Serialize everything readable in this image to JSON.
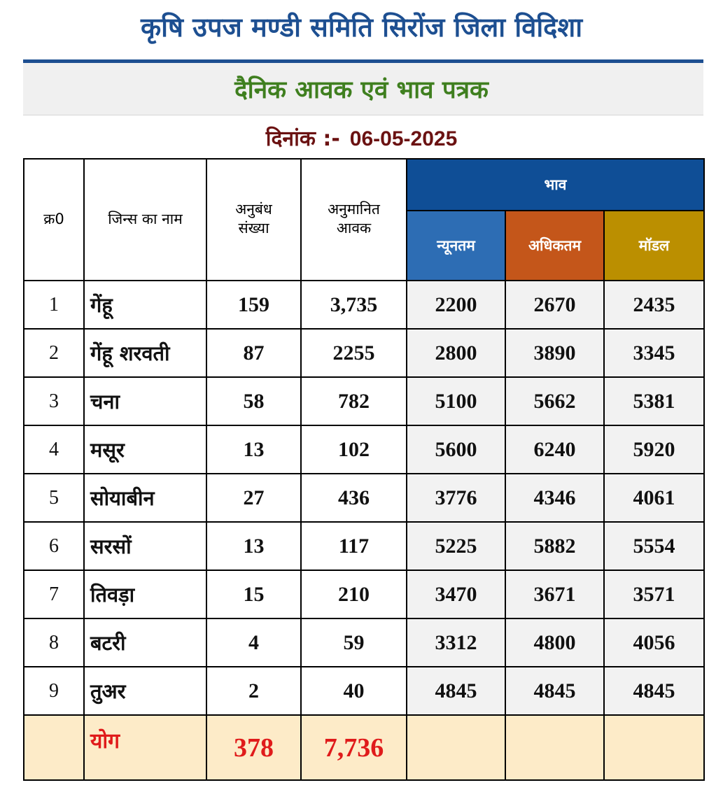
{
  "header": {
    "title": "कृषि उपज मण्डी समिति सिरोंज जिला विदिशा",
    "subtitle": "दैनिक आवक एवं भाव पत्रक",
    "date_label": "दिनांक :-",
    "date_value": "06-05-2025"
  },
  "table": {
    "columns": {
      "sr": "क्र0",
      "name": "जिन्स का नाम",
      "contracts_1": "अनुबंध",
      "contracts_2": "संख्या",
      "arrival_1": "अनुमानित",
      "arrival_2": "आवक",
      "price_group": "भाव",
      "min": "न्यूनतम",
      "max": "अधिकतम",
      "modal": "मॉडल"
    },
    "rows": [
      {
        "sr": "1",
        "name": "गेंहू",
        "contracts": "159",
        "arrival": "3,735",
        "min": "2200",
        "max": "2670",
        "modal": "2435"
      },
      {
        "sr": "2",
        "name": "गेंहू शरवती",
        "contracts": "87",
        "arrival": "2255",
        "min": "2800",
        "max": "3890",
        "modal": "3345"
      },
      {
        "sr": "3",
        "name": "चना",
        "contracts": "58",
        "arrival": "782",
        "min": "5100",
        "max": "5662",
        "modal": "5381"
      },
      {
        "sr": "4",
        "name": "मसूर",
        "contracts": "13",
        "arrival": "102",
        "min": "5600",
        "max": "6240",
        "modal": "5920"
      },
      {
        "sr": "5",
        "name": "सोयाबीन",
        "contracts": "27",
        "arrival": "436",
        "min": "3776",
        "max": "4346",
        "modal": "4061"
      },
      {
        "sr": "6",
        "name": "सरसों",
        "contracts": "13",
        "arrival": "117",
        "min": "5225",
        "max": "5882",
        "modal": "5554"
      },
      {
        "sr": "7",
        "name": "तिवड़ा",
        "contracts": "15",
        "arrival": "210",
        "min": "3470",
        "max": "3671",
        "modal": "3571"
      },
      {
        "sr": "8",
        "name": "बटरी",
        "contracts": "4",
        "arrival": "59",
        "min": "3312",
        "max": "4800",
        "modal": "4056"
      },
      {
        "sr": "9",
        "name": "तुअर",
        "contracts": "2",
        "arrival": "40",
        "min": "4845",
        "max": "4845",
        "modal": "4845"
      }
    ],
    "total": {
      "label": "योग",
      "contracts": "378",
      "arrival": "7,736"
    }
  },
  "colors": {
    "title": "#1d4f91",
    "subtitle": "#3f7f1f",
    "date": "#6b1212",
    "price_header": "#0f4e96",
    "min_header": "#2d6db4",
    "max_header": "#c4561a",
    "modal_header": "#bb8f00",
    "total_text": "#e01b1b",
    "total_bg": "#fdebc8"
  }
}
